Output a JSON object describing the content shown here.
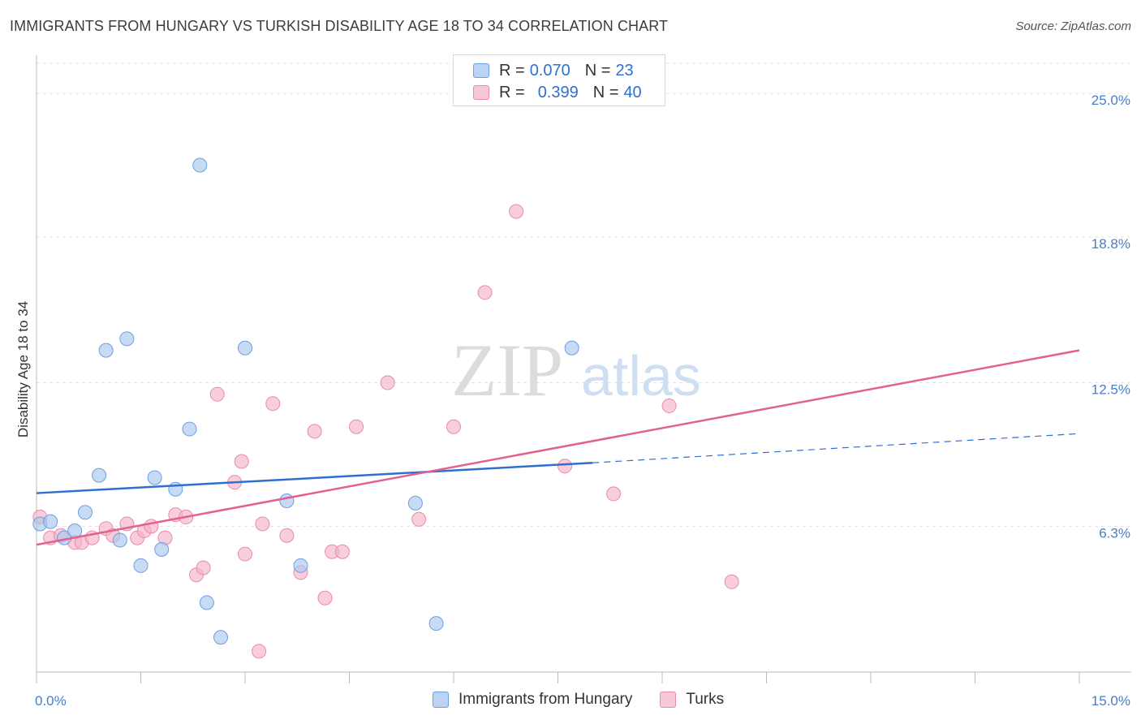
{
  "title": "IMMIGRANTS FROM HUNGARY VS TURKISH DISABILITY AGE 18 TO 34 CORRELATION CHART",
  "source": "Source: ZipAtlas.com",
  "watermark": {
    "zip": "ZIP",
    "atlas": "atlas"
  },
  "legend": {
    "rows": [
      {
        "r_label": "R =",
        "r_value": "0.070",
        "n_label": "N =",
        "n_value": "23",
        "color": "#a9c8ef"
      },
      {
        "r_label": "R =",
        "r_value": "0.399",
        "n_label": "N =",
        "n_value": "40",
        "color": "#f5b3c8"
      }
    ]
  },
  "bottom_legend": [
    "Immigrants from Hungary",
    "Turks"
  ],
  "chart_data": {
    "type": "scatter",
    "ylabel": "Disability Age 18 to 34",
    "xlim": [
      0,
      15
    ],
    "ylim": [
      0,
      26.3
    ],
    "x_tick_labels": [
      "0.0%",
      "15.0%"
    ],
    "y_ticks": [
      6.3,
      12.5,
      18.8,
      25.0
    ],
    "y_tick_labels": [
      "6.3%",
      "12.5%",
      "18.8%",
      "25.0%"
    ],
    "grid": true,
    "colors": {
      "Immigrants from Hungary": "#2f6fd1",
      "Turks": "#e2628f"
    },
    "series": [
      {
        "name": "Immigrants from Hungary",
        "marker_fill": "#a9c8ef",
        "marker_edge": "#6d9ee0",
        "points": [
          [
            0.05,
            6.4
          ],
          [
            0.2,
            6.5
          ],
          [
            0.4,
            5.8
          ],
          [
            0.55,
            6.1
          ],
          [
            0.7,
            6.9
          ],
          [
            0.9,
            8.5
          ],
          [
            1.0,
            13.9
          ],
          [
            1.2,
            5.7
          ],
          [
            1.3,
            14.4
          ],
          [
            1.5,
            4.6
          ],
          [
            1.7,
            8.4
          ],
          [
            1.8,
            5.3
          ],
          [
            2.0,
            7.9
          ],
          [
            2.2,
            10.5
          ],
          [
            2.35,
            21.9
          ],
          [
            2.45,
            3.0
          ],
          [
            2.65,
            1.5
          ],
          [
            3.0,
            14.0
          ],
          [
            3.6,
            7.4
          ],
          [
            3.8,
            4.6
          ],
          [
            5.45,
            7.3
          ],
          [
            5.75,
            2.1
          ],
          [
            7.7,
            14.0
          ]
        ],
        "trend": {
          "x_solid": [
            0.0,
            8.0
          ],
          "y_solid": [
            7.73,
            9.04
          ],
          "x_dashed": [
            8.0,
            15.0
          ],
          "y_dashed": [
            9.04,
            10.3
          ]
        }
      },
      {
        "name": "Turks",
        "marker_fill": "#f5b3c8",
        "marker_edge": "#e98aaa",
        "points": [
          [
            0.05,
            6.7
          ],
          [
            0.2,
            5.8
          ],
          [
            0.35,
            5.9
          ],
          [
            0.55,
            5.6
          ],
          [
            0.65,
            5.6
          ],
          [
            0.8,
            5.8
          ],
          [
            1.0,
            6.2
          ],
          [
            1.1,
            5.9
          ],
          [
            1.3,
            6.4
          ],
          [
            1.45,
            5.8
          ],
          [
            1.55,
            6.1
          ],
          [
            1.65,
            6.3
          ],
          [
            1.85,
            5.8
          ],
          [
            2.0,
            6.8
          ],
          [
            2.15,
            6.7
          ],
          [
            2.3,
            4.2
          ],
          [
            2.4,
            4.5
          ],
          [
            2.6,
            12.0
          ],
          [
            2.85,
            8.2
          ],
          [
            2.95,
            9.1
          ],
          [
            3.0,
            5.1
          ],
          [
            3.2,
            0.9
          ],
          [
            3.25,
            6.4
          ],
          [
            3.4,
            11.6
          ],
          [
            3.6,
            5.9
          ],
          [
            3.8,
            4.3
          ],
          [
            4.0,
            10.4
          ],
          [
            4.15,
            3.2
          ],
          [
            4.25,
            5.2
          ],
          [
            4.4,
            5.2
          ],
          [
            4.6,
            10.6
          ],
          [
            5.05,
            12.5
          ],
          [
            5.5,
            6.6
          ],
          [
            6.0,
            10.6
          ],
          [
            6.45,
            16.4
          ],
          [
            6.9,
            19.9
          ],
          [
            7.6,
            8.9
          ],
          [
            8.3,
            7.7
          ],
          [
            9.1,
            11.5
          ],
          [
            10.0,
            3.9
          ]
        ],
        "trend": {
          "x": [
            0.0,
            15.0
          ],
          "y": [
            5.5,
            13.9
          ]
        }
      }
    ]
  }
}
